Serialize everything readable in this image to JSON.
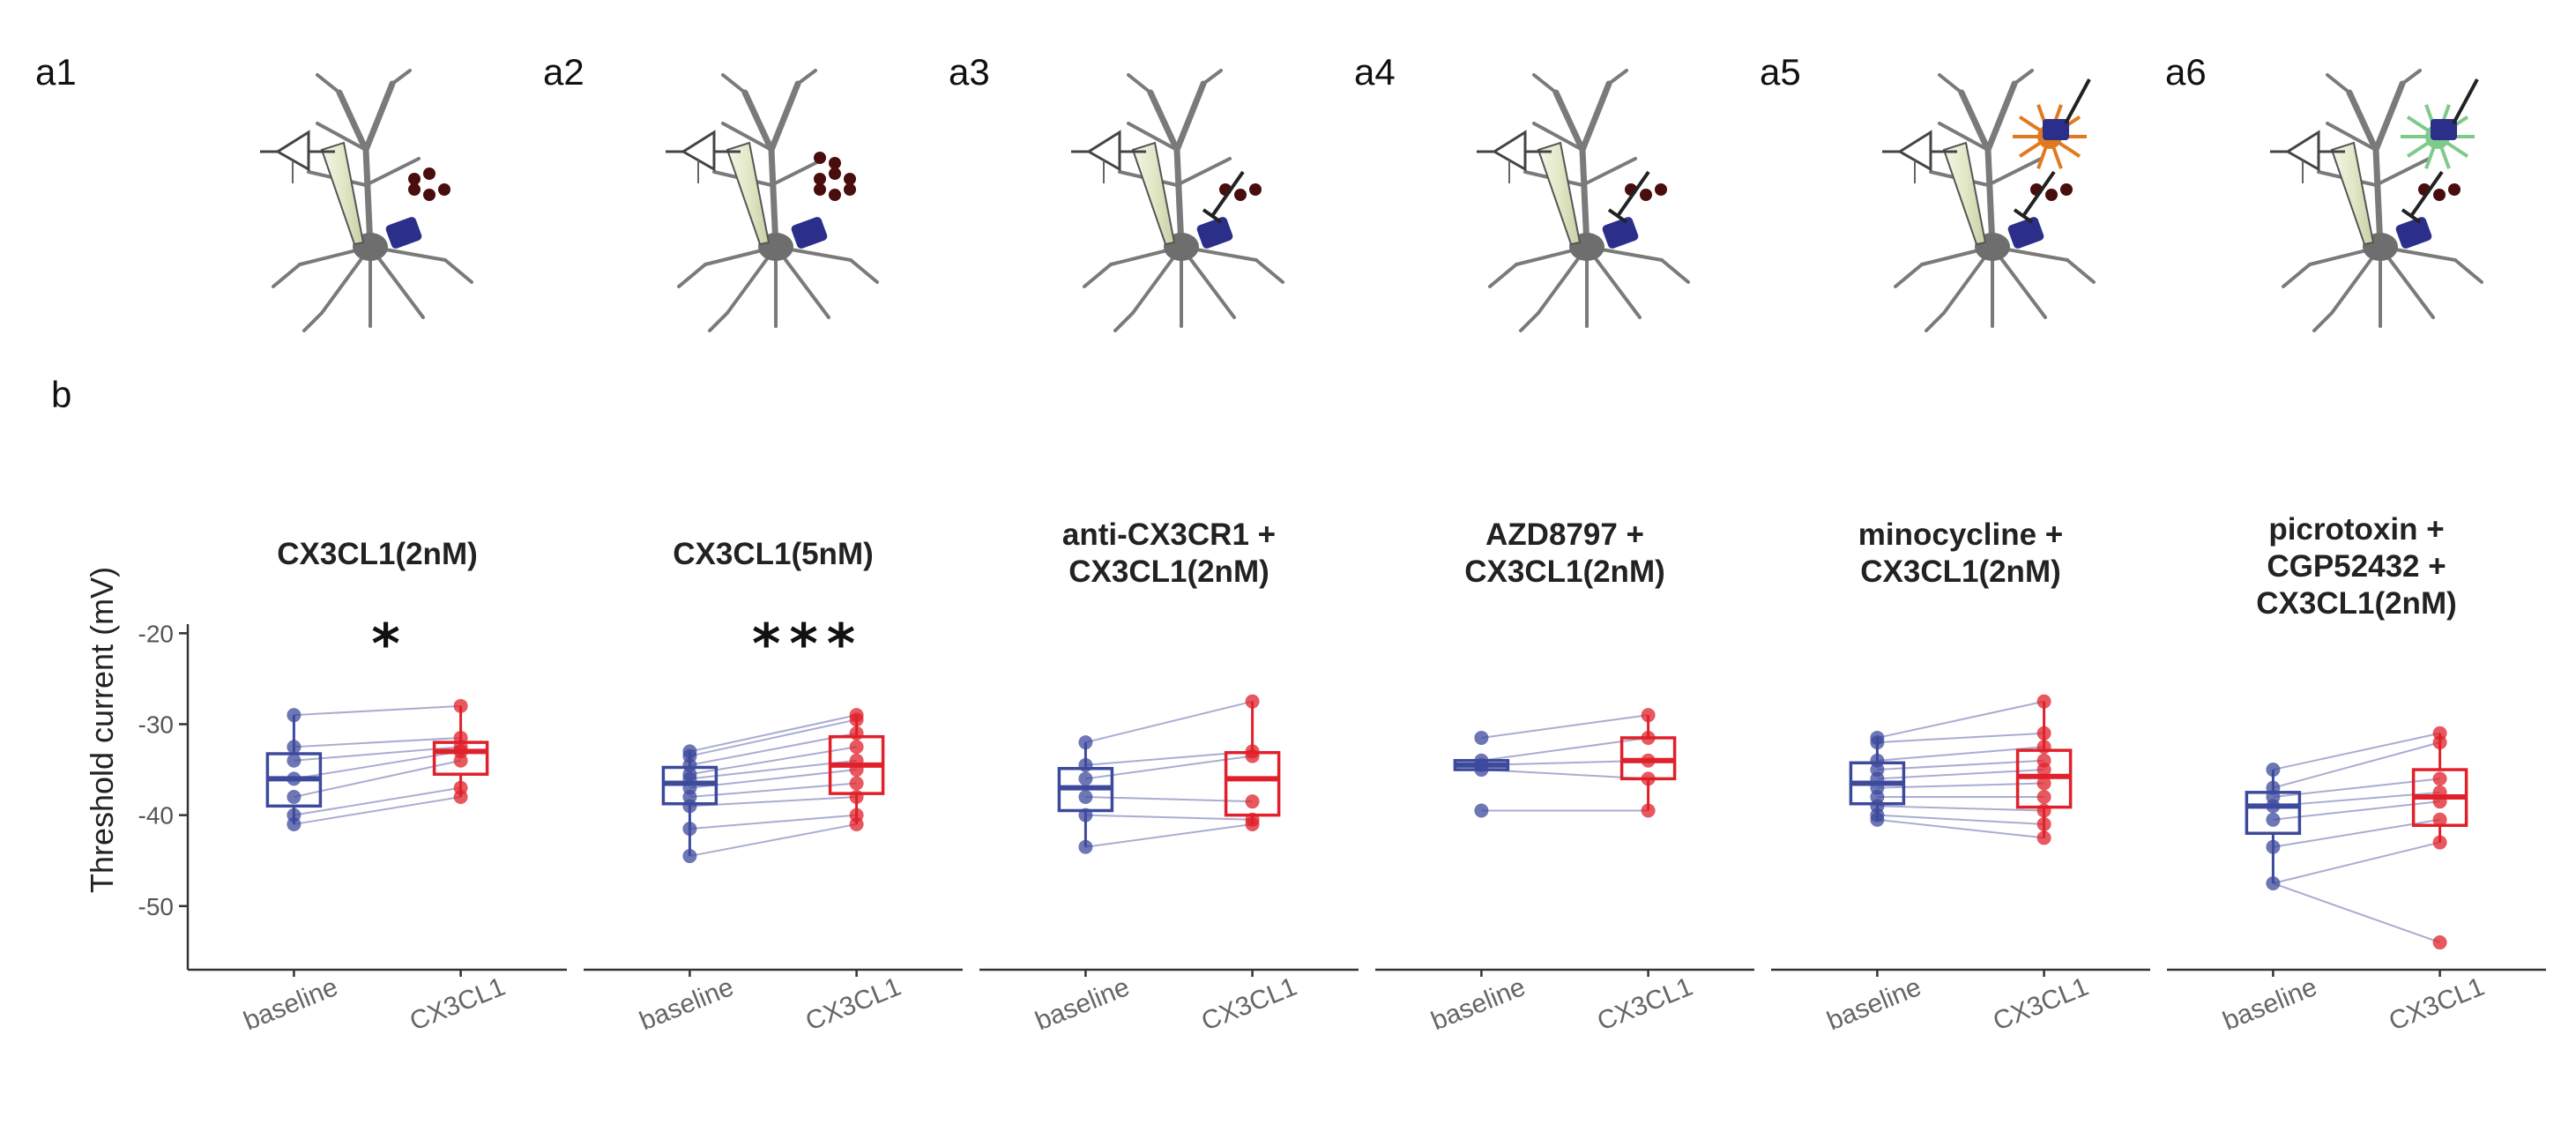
{
  "figure": {
    "panel_labels": [
      "a1",
      "a2",
      "a3",
      "a4",
      "a5",
      "a6",
      "b"
    ],
    "schematics": [
      {
        "id": "a1",
        "dots": 5
      },
      {
        "id": "a2",
        "dots": 8
      },
      {
        "id": "a3",
        "dots": 3,
        "blocker": true
      },
      {
        "id": "a4",
        "dots": 3,
        "blocker": true
      },
      {
        "id": "a5",
        "dots": 3,
        "microglia": true,
        "blocker": true
      },
      {
        "id": "a6",
        "dots": 3,
        "astrocyte": true,
        "blocker": true
      }
    ],
    "colors": {
      "baseline": "#3d4a9c",
      "cx3cl1": "#e0202a",
      "receptor": "#2b2f8a",
      "dots": "#4a0d0d",
      "microglia": "#e07a1f",
      "astrocyte": "#7fc98a"
    }
  },
  "chart_data": {
    "type": "box",
    "ylabel": "Threshold current (mV)",
    "ylim": [
      -57,
      -19
    ],
    "yticks": [
      -20,
      -30,
      -40,
      -50
    ],
    "categories": [
      "baseline",
      "CX3CL1"
    ],
    "panels": [
      {
        "title": "CX3CL1(2nM)",
        "significance": "*",
        "baseline": [
          -29,
          -32.5,
          -34,
          -36,
          -38,
          -40,
          -41
        ],
        "cx3cl1": [
          -28,
          -31.5,
          -32.5,
          -33,
          -34,
          -37,
          -38
        ]
      },
      {
        "title": "CX3CL1(5nM)",
        "significance": "***",
        "baseline": [
          -33,
          -33.5,
          -34.5,
          -35.5,
          -36,
          -37,
          -38,
          -39,
          -41.5,
          -44.5
        ],
        "cx3cl1": [
          -29,
          -29.5,
          -31,
          -32.5,
          -34,
          -35,
          -36.5,
          -38,
          -40,
          -41
        ]
      },
      {
        "title": "anti-CX3CR1 +\nCX3CL1(2nM)",
        "significance": "",
        "baseline": [
          -32,
          -34.5,
          -36,
          -38,
          -40,
          -43.5
        ],
        "cx3cl1": [
          -27.5,
          -33,
          -33.5,
          -38.5,
          -40.5,
          -41
        ]
      },
      {
        "title": "AZD8797 +\nCX3CL1(2nM)",
        "significance": "",
        "baseline": [
          -31.5,
          -34,
          -34.5,
          -35,
          -39.5
        ],
        "cx3cl1": [
          -29,
          -31.5,
          -34,
          -36,
          -39.5
        ]
      },
      {
        "title": "minocycline +\nCX3CL1(2nM)",
        "significance": "",
        "baseline": [
          -31.5,
          -32,
          -34,
          -35,
          -36,
          -37,
          -38,
          -39,
          -40,
          -40.5
        ],
        "cx3cl1": [
          -27.5,
          -31,
          -32.5,
          -34,
          -35,
          -36.5,
          -38,
          -39.5,
          -41,
          -42.5
        ]
      },
      {
        "title": "picrotoxin +\nCGP52432 +\nCX3CL1(2nM)",
        "significance": "",
        "baseline": [
          -35,
          -37,
          -38,
          -39,
          -40.5,
          -43.5,
          -47.5
        ],
        "cx3cl1": [
          -31,
          -32,
          -36,
          -37.5,
          -38.5,
          -40.5,
          -43,
          -54
        ]
      }
    ]
  }
}
